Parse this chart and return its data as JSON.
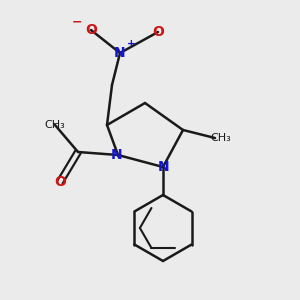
{
  "bg_color": "#ebebeb",
  "atom_colors": {
    "C": "#1a1a1a",
    "N": "#1515cc",
    "O": "#cc1515",
    "bond": "#1a1a1a"
  },
  "figsize": [
    3.0,
    3.0
  ],
  "dpi": 100
}
